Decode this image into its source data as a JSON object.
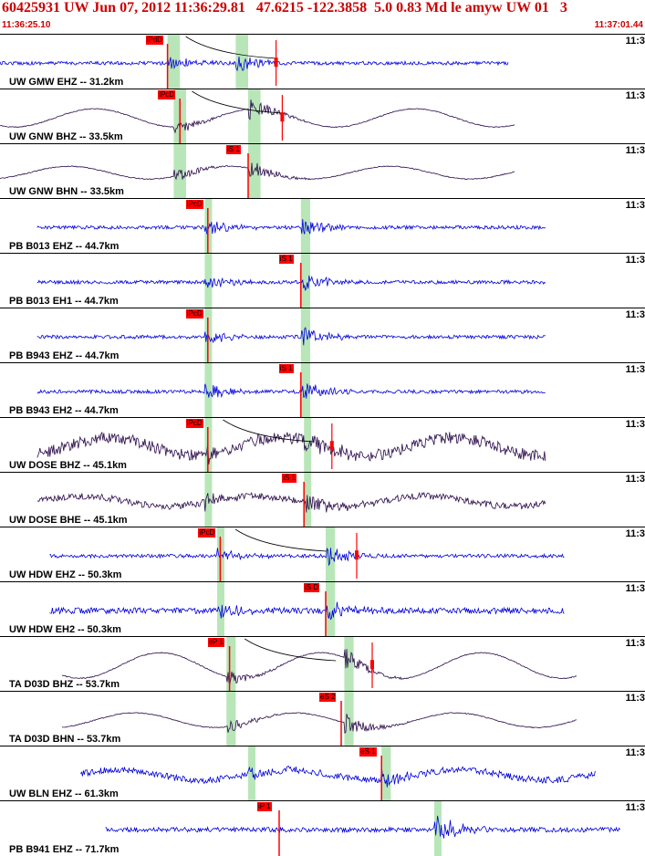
{
  "header": {
    "title": "60425931 UW Jun 07, 2012 11:36:29.81   47.6215 -122.3858  5.0 0.83 Md le amyw UW 01   3",
    "start_time": "11:36:25.10",
    "end_time": "11:37:01.44"
  },
  "colors": {
    "trace_blue": "#0000dd",
    "trace_dark": "#2a0a4a",
    "pick_red": "#ff0000",
    "window_green": "#b8e6b8",
    "header_red": "#cc0000"
  },
  "traces": [
    {
      "label": "UW GMW EHZ -- 31.2km",
      "time": "11:3",
      "pick": "iPdD",
      "color": "blue",
      "style": "noise",
      "amp": 3,
      "start": 0.0,
      "end": 0.82,
      "pickx": 0.27,
      "win": [
        0.27,
        0.29
      ],
      "s": [
        0.38,
        0.4
      ],
      "spike": 0.445,
      "curve": true
    },
    {
      "label": "UW GNW BHZ -- 33.5km",
      "time": "11:3",
      "pick": "iPcD",
      "color": "dark",
      "style": "sine",
      "amp": 10,
      "start": 0.0,
      "end": 0.83,
      "pickx": 0.29,
      "win": [
        0.28,
        0.3
      ],
      "s": [
        0.4,
        0.42
      ],
      "spike": 0.455,
      "curve": true
    },
    {
      "label": "UW GNW BHN -- 33.5km",
      "time": "11:3",
      "pick": "iS 1",
      "color": "dark",
      "style": "sine",
      "amp": 7,
      "start": 0.0,
      "end": 0.83,
      "pickx": 0.4,
      "win": [
        0.28,
        0.3
      ],
      "s": [
        0.4,
        0.42
      ],
      "spike": null,
      "curve": false
    },
    {
      "label": "PB B013 EHZ -- 44.7km",
      "time": "11:3",
      "pick": "iPcD",
      "color": "blue",
      "style": "noise",
      "amp": 3,
      "start": 0.06,
      "end": 0.88,
      "pickx": 0.335,
      "win": [
        0.33,
        0.34
      ],
      "s": [
        0.485,
        0.5
      ],
      "spike": null,
      "curve": false
    },
    {
      "label": "PB B013 EH1 -- 44.7km",
      "time": "11:3",
      "pick": "iS 1",
      "color": "blue",
      "style": "noise",
      "amp": 3,
      "start": 0.06,
      "end": 0.88,
      "pickx": 0.485,
      "win": [
        0.33,
        0.34
      ],
      "s": [
        0.485,
        0.5
      ],
      "spike": null,
      "curve": false
    },
    {
      "label": "PB B943 EHZ -- 44.7km",
      "time": "11:3",
      "pick": "iPcD",
      "color": "blue",
      "style": "noise",
      "amp": 3,
      "start": 0.06,
      "end": 0.88,
      "pickx": 0.335,
      "win": [
        0.33,
        0.34
      ],
      "s": [
        0.485,
        0.5
      ],
      "spike": null,
      "curve": false
    },
    {
      "label": "PB B943 EH2 -- 44.7km",
      "time": "11:3",
      "pick": "iS 1",
      "color": "blue",
      "style": "noise",
      "amp": 3,
      "start": 0.06,
      "end": 0.88,
      "pickx": 0.485,
      "win": [
        0.33,
        0.34
      ],
      "s": [
        0.485,
        0.5
      ],
      "spike": null,
      "curve": false
    },
    {
      "label": "UW DOSE BHZ -- 45.1km",
      "time": "11:3",
      "pick": "iPcD",
      "color": "dark",
      "style": "noisysine",
      "amp": 14,
      "start": 0.06,
      "end": 0.88,
      "pickx": 0.335,
      "win": [
        0.33,
        0.34
      ],
      "s": [
        0.49,
        0.5
      ],
      "spike": 0.535,
      "curve": true
    },
    {
      "label": "UW DOSE BHE -- 45.1km",
      "time": "11:3",
      "pick": "iS 1",
      "color": "dark",
      "style": "noisysine",
      "amp": 8,
      "start": 0.06,
      "end": 0.88,
      "pickx": 0.49,
      "win": [
        0.33,
        0.34
      ],
      "s": [
        0.49,
        0.5
      ],
      "spike": null,
      "curve": false
    },
    {
      "label": "UW HDW EHZ -- 50.3km",
      "time": "11:3",
      "pick": "iPcD",
      "color": "blue",
      "style": "noise",
      "amp": 3,
      "start": 0.08,
      "end": 0.91,
      "pickx": 0.355,
      "win": [
        0.35,
        0.36
      ],
      "s": [
        0.525,
        0.54
      ],
      "spike": 0.575,
      "curve": true
    },
    {
      "label": "UW HDW EH2 -- 50.3km",
      "time": "11:3",
      "pick": "iS D",
      "color": "blue",
      "style": "noise",
      "amp": 5,
      "start": 0.08,
      "end": 0.91,
      "pickx": 0.525,
      "win": [
        0.35,
        0.36
      ],
      "s": [
        0.525,
        0.54
      ],
      "spike": null,
      "curve": false
    },
    {
      "label": "TA D03D BHZ -- 53.7km",
      "time": "11:3",
      "pick": "eP 1",
      "color": "dark",
      "style": "sine",
      "amp": 14,
      "start": 0.1,
      "end": 0.93,
      "pickx": 0.37,
      "win": [
        0.365,
        0.38
      ],
      "s": [
        0.555,
        0.57
      ],
      "spike": 0.6,
      "curve": true
    },
    {
      "label": "TA D03D BHN -- 53.7km",
      "time": "11:3",
      "pick": "eS 2",
      "color": "dark",
      "style": "sine",
      "amp": 8,
      "start": 0.1,
      "end": 0.93,
      "pickx": 0.55,
      "win": [
        0.365,
        0.38
      ],
      "s": [
        0.555,
        0.57
      ],
      "spike": null,
      "curve": false
    },
    {
      "label": "UW BLN EHZ -- 61.3km",
      "time": "11:3",
      "pick": "eS 1",
      "color": "blue",
      "style": "noisysine",
      "amp": 8,
      "start": 0.13,
      "end": 0.96,
      "pickx": 0.615,
      "win": [
        0.4,
        0.41
      ],
      "s": [
        0.615,
        0.63
      ],
      "spike": null,
      "curve": false
    },
    {
      "label": "PB B941 EHZ -- 71.7km",
      "time": "11:3",
      "pick": "iP 1",
      "color": "blue",
      "style": "noise",
      "amp": 4,
      "start": 0.17,
      "end": 1.0,
      "pickx": 0.45,
      "win": [
        0.7,
        0.71
      ],
      "s": [
        0.7,
        0.71
      ],
      "spike": null,
      "curve": false
    }
  ]
}
